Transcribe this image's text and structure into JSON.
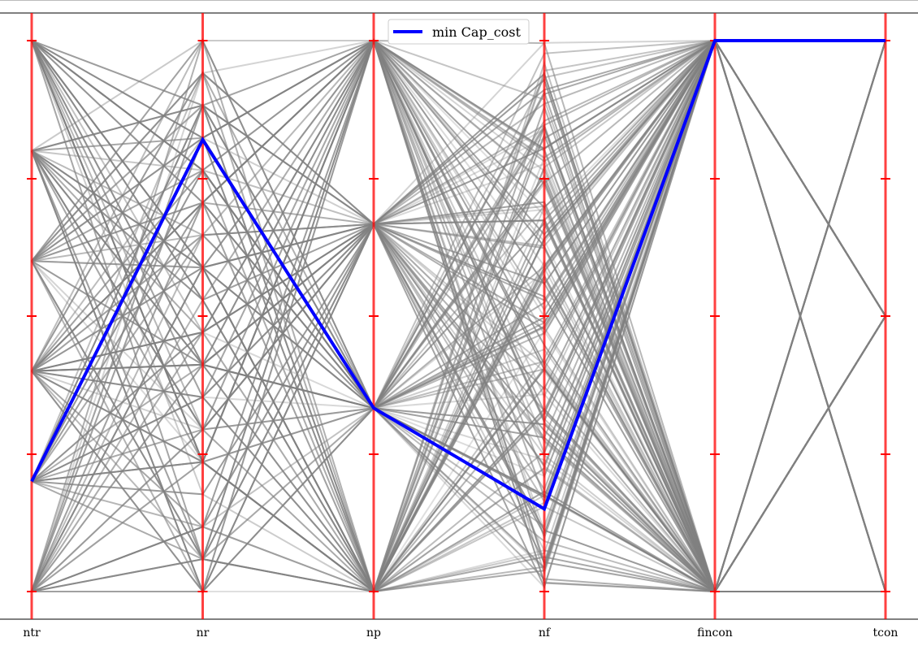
{
  "chart_data": {
    "type": "parallel_coordinates",
    "axes": [
      "ntr",
      "nr",
      "np",
      "nf",
      "fincon",
      "tcon"
    ],
    "axis_levels": {
      "ntr": [
        0,
        0.2,
        0.4,
        0.6,
        0.8,
        1.0
      ],
      "nr": [
        0,
        0.0588,
        0.1176,
        0.1765,
        0.2353,
        0.2941,
        0.3529,
        0.4118,
        0.4706,
        0.5294,
        0.5882,
        0.6471,
        0.7059,
        0.7647,
        0.8235,
        0.8824,
        0.9412,
        1.0
      ],
      "np": [
        0,
        0.333,
        0.667,
        1.0
      ],
      "fincon": [
        0,
        1.0
      ],
      "tcon": [
        0,
        0.5,
        1.0
      ]
    },
    "highlight": {
      "name": "min Cap_cost",
      "color": "#0000ff",
      "values": [
        0.2,
        0.82,
        0.333,
        0.15,
        1.0,
        1.0
      ]
    },
    "background_color": "#808080",
    "axis_color": "#ff0000",
    "legend": {
      "label": "min Cap_cost",
      "position": "top-center"
    }
  }
}
